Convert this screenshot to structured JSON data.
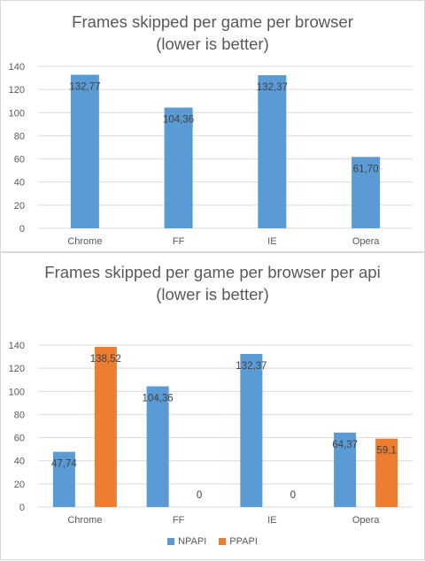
{
  "chart_data": [
    {
      "type": "bar",
      "title_line1": "Frames skipped per game per browser",
      "title_line2": "(lower is better)",
      "categories": [
        "Chrome",
        "FF",
        "IE",
        "Opera"
      ],
      "series": [
        {
          "values": [
            132.77,
            104.36,
            132.37,
            61.7
          ],
          "labels": [
            "132,77",
            "104,36",
            "132,37",
            "61,70"
          ],
          "color": "#5b9bd5"
        }
      ],
      "ylim": [
        0,
        140
      ],
      "yticks": [
        0,
        20,
        40,
        60,
        80,
        100,
        120,
        140
      ],
      "grid": true,
      "legend": "none"
    },
    {
      "type": "bar",
      "title_line1": "Frames skipped per game per browser per api",
      "title_line2": "(lower is better)",
      "categories": [
        "Chrome",
        "FF",
        "IE",
        "Opera"
      ],
      "series": [
        {
          "name": "NPAPI",
          "values": [
            47.74,
            104.36,
            132.37,
            64.37
          ],
          "labels": [
            "47,74",
            "104,36",
            "132,37",
            "64,37"
          ],
          "color": "#5b9bd5"
        },
        {
          "name": "PPAPI",
          "values": [
            138.52,
            0,
            0,
            59.1
          ],
          "labels": [
            "138,52",
            "0",
            "0",
            "59,1"
          ],
          "color": "#ed7d31"
        }
      ],
      "ylim": [
        0,
        140
      ],
      "yticks": [
        0,
        20,
        40,
        60,
        80,
        100,
        120,
        140
      ],
      "grid": true,
      "legend": "bottom"
    }
  ]
}
